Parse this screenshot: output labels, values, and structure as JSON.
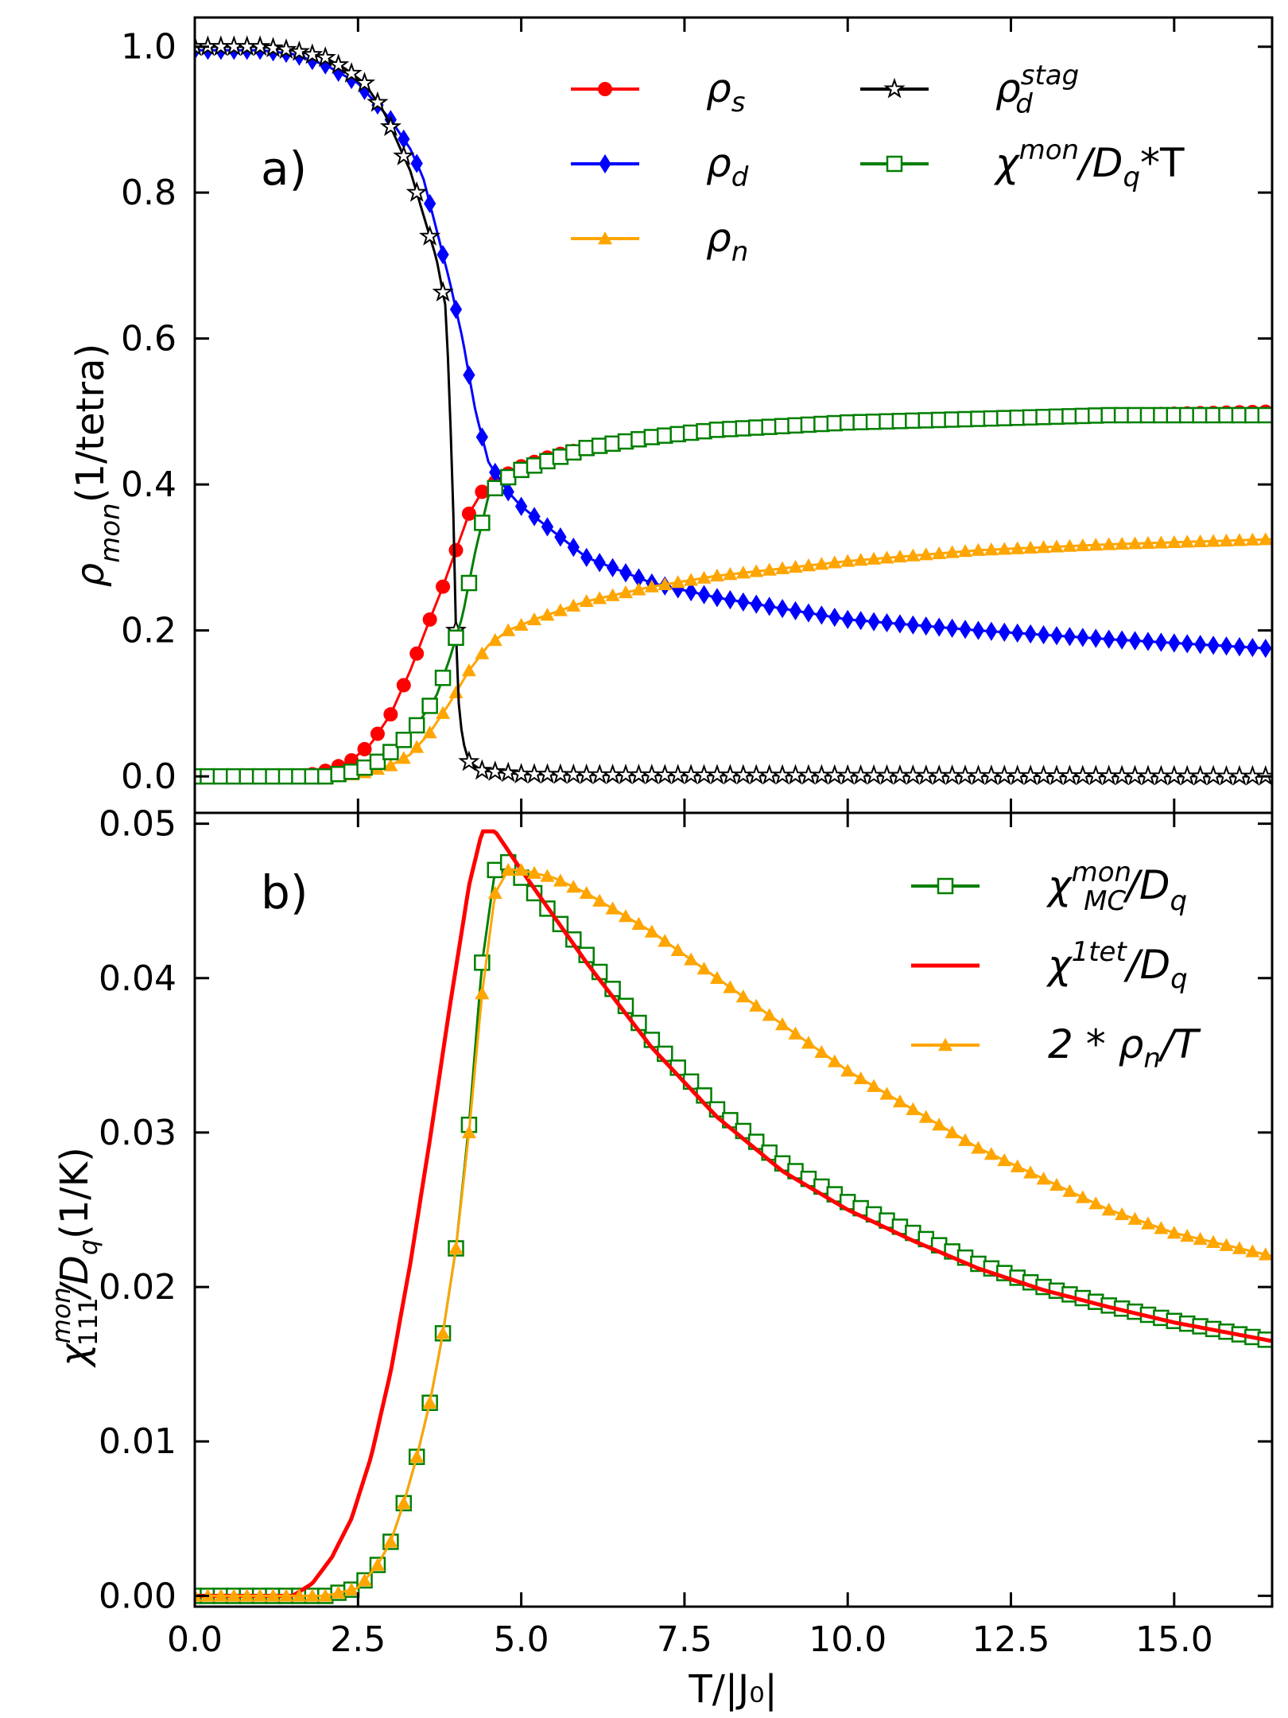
{
  "figure": {
    "xlabel": "T/|J₀|",
    "x_tick_labels": [
      "0.0",
      "2.5",
      "5.0",
      "7.5",
      "10.0",
      "12.5",
      "15.0"
    ],
    "colors": {
      "rho_s": "#ff0000",
      "rho_d": "#0000ff",
      "rho_n": "#ffa500",
      "rho_stag": "#000000",
      "chi_mc": "#007f00",
      "chi_1tet": "#ff0000",
      "two_rho_n": "#ffa500"
    }
  },
  "chart_data": [
    {
      "type": "line",
      "panel_label": "a)",
      "xlabel": "T/|J₀|",
      "ylabel": {
        "prefix": "ρ",
        "sub": "mon",
        "suffix": "(1/tetra)"
      },
      "xlim": [
        0.0,
        16.5
      ],
      "ylim": [
        -0.05,
        1.04
      ],
      "y_tick_labels": [
        "0.0",
        "0.2",
        "0.4",
        "0.6",
        "0.8",
        "1.0"
      ],
      "legend_position": "top-right",
      "series": [
        {
          "name": "ρs",
          "legend": {
            "base": "ρ",
            "sub": "s"
          },
          "color": "#ff0000",
          "marker": "circle",
          "points": [
            [
              0,
              0
            ],
            [
              1.5,
              0
            ],
            [
              1.8,
              0.003
            ],
            [
              2.1,
              0.01
            ],
            [
              2.4,
              0.022
            ],
            [
              2.7,
              0.045
            ],
            [
              3.0,
              0.085
            ],
            [
              3.3,
              0.145
            ],
            [
              3.6,
              0.215
            ],
            [
              3.8,
              0.26
            ],
            [
              4.0,
              0.31
            ],
            [
              4.2,
              0.36
            ],
            [
              4.4,
              0.39
            ],
            [
              4.7,
              0.41
            ],
            [
              5.0,
              0.425
            ],
            [
              5.5,
              0.44
            ],
            [
              6.0,
              0.45
            ],
            [
              7.0,
              0.465
            ],
            [
              8.0,
              0.475
            ],
            [
              10.0,
              0.485
            ],
            [
              12.0,
              0.49
            ],
            [
              14.0,
              0.495
            ],
            [
              16.5,
              0.5
            ]
          ]
        },
        {
          "name": "ρd",
          "legend": {
            "base": "ρ",
            "sub": "d"
          },
          "color": "#0000ff",
          "marker": "diamond",
          "points": [
            [
              0,
              0.995
            ],
            [
              1.0,
              0.995
            ],
            [
              1.5,
              0.99
            ],
            [
              2.0,
              0.975
            ],
            [
              2.5,
              0.95
            ],
            [
              3.0,
              0.9
            ],
            [
              3.3,
              0.86
            ],
            [
              3.5,
              0.82
            ],
            [
              3.7,
              0.75
            ],
            [
              3.9,
              0.68
            ],
            [
              4.1,
              0.6
            ],
            [
              4.3,
              0.5
            ],
            [
              4.5,
              0.43
            ],
            [
              4.8,
              0.39
            ],
            [
              5.0,
              0.37
            ],
            [
              5.5,
              0.335
            ],
            [
              6.0,
              0.3
            ],
            [
              7.0,
              0.265
            ],
            [
              8.0,
              0.245
            ],
            [
              9.0,
              0.23
            ],
            [
              10.0,
              0.215
            ],
            [
              12.0,
              0.2
            ],
            [
              14.0,
              0.188
            ],
            [
              16.5,
              0.175
            ]
          ]
        },
        {
          "name": "ρn",
          "legend": {
            "base": "ρ",
            "sub": "n"
          },
          "color": "#ffa500",
          "marker": "triangle",
          "points": [
            [
              0,
              0
            ],
            [
              2.0,
              0
            ],
            [
              2.5,
              0.003
            ],
            [
              3.0,
              0.015
            ],
            [
              3.3,
              0.03
            ],
            [
              3.6,
              0.06
            ],
            [
              3.9,
              0.1
            ],
            [
              4.2,
              0.145
            ],
            [
              4.5,
              0.18
            ],
            [
              4.8,
              0.2
            ],
            [
              5.2,
              0.215
            ],
            [
              6.0,
              0.24
            ],
            [
              7.0,
              0.26
            ],
            [
              8.0,
              0.275
            ],
            [
              10.0,
              0.295
            ],
            [
              12.0,
              0.31
            ],
            [
              14.0,
              0.318
            ],
            [
              16.5,
              0.325
            ]
          ]
        },
        {
          "name": "ρd^stag",
          "legend": {
            "base": "ρ",
            "sub": "d",
            "sup": "stag"
          },
          "color": "#000000",
          "marker": "star",
          "points": [
            [
              0,
              1.0
            ],
            [
              1.0,
              1.0
            ],
            [
              1.5,
              0.995
            ],
            [
              2.0,
              0.985
            ],
            [
              2.3,
              0.97
            ],
            [
              2.6,
              0.95
            ],
            [
              2.9,
              0.91
            ],
            [
              3.1,
              0.87
            ],
            [
              3.3,
              0.83
            ],
            [
              3.5,
              0.77
            ],
            [
              3.7,
              0.71
            ],
            [
              3.85,
              0.64
            ],
            [
              3.95,
              0.4
            ],
            [
              4.02,
              0.12
            ],
            [
              4.1,
              0.05
            ],
            [
              4.2,
              0.02
            ],
            [
              4.4,
              0.008
            ],
            [
              5.0,
              0.003
            ],
            [
              6.0,
              0.002
            ],
            [
              16.5,
              0.0
            ]
          ]
        },
        {
          "name": "χmon/Dq*T",
          "legend": {
            "base": "χ",
            "sup": "mon",
            "tail": "/D",
            "tail_sub": "q",
            "end": "*T"
          },
          "color": "#007f00",
          "marker": "square-open",
          "points": [
            [
              0,
              0
            ],
            [
              2.0,
              0
            ],
            [
              2.5,
              0.008
            ],
            [
              2.8,
              0.02
            ],
            [
              3.1,
              0.04
            ],
            [
              3.4,
              0.07
            ],
            [
              3.7,
              0.11
            ],
            [
              3.9,
              0.16
            ],
            [
              4.1,
              0.22
            ],
            [
              4.3,
              0.31
            ],
            [
              4.5,
              0.385
            ],
            [
              4.7,
              0.405
            ],
            [
              5.0,
              0.42
            ],
            [
              5.5,
              0.435
            ],
            [
              6.0,
              0.45
            ],
            [
              7.0,
              0.465
            ],
            [
              8.0,
              0.475
            ],
            [
              10.0,
              0.485
            ],
            [
              12.0,
              0.49
            ],
            [
              14.0,
              0.495
            ],
            [
              16.5,
              0.495
            ]
          ]
        }
      ]
    },
    {
      "type": "line",
      "panel_label": "b)",
      "xlabel": "T/|J₀|",
      "ylabel": {
        "prefix": "χ",
        "sup": "mon",
        "sub": "111",
        "suffix": "/D",
        "suffix_sub": "q",
        "end": "(1/K)"
      },
      "xlim": [
        0.0,
        16.5
      ],
      "ylim": [
        -0.0007,
        0.0507
      ],
      "y_tick_labels": [
        "0.00",
        "0.01",
        "0.02",
        "0.03",
        "0.04",
        "0.05"
      ],
      "legend_position": "top-right",
      "series": [
        {
          "name": "χMC^mon/Dq",
          "legend": {
            "base": "χ",
            "sup": "mon",
            "sub": "MC",
            "tail": "/D",
            "tail_sub": "q"
          },
          "color": "#007f00",
          "marker": "square-open",
          "points": [
            [
              0,
              0
            ],
            [
              2.0,
              0
            ],
            [
              2.5,
              0.0005
            ],
            [
              2.8,
              0.002
            ],
            [
              3.0,
              0.0035
            ],
            [
              3.2,
              0.006
            ],
            [
              3.4,
              0.009
            ],
            [
              3.6,
              0.0125
            ],
            [
              3.8,
              0.017
            ],
            [
              4.0,
              0.0225
            ],
            [
              4.2,
              0.0305
            ],
            [
              4.4,
              0.041
            ],
            [
              4.6,
              0.047
            ],
            [
              4.8,
              0.0475
            ],
            [
              5.0,
              0.0465
            ],
            [
              5.5,
              0.044
            ],
            [
              6.0,
              0.0415
            ],
            [
              7.0,
              0.036
            ],
            [
              8.0,
              0.0315
            ],
            [
              9.0,
              0.028
            ],
            [
              10.0,
              0.0255
            ],
            [
              11.0,
              0.0235
            ],
            [
              12.0,
              0.0215
            ],
            [
              13.0,
              0.02
            ],
            [
              14.0,
              0.0188
            ],
            [
              15.0,
              0.0178
            ],
            [
              16.5,
              0.0165
            ]
          ]
        },
        {
          "name": "χ1tet/Dq",
          "legend": {
            "base": "χ",
            "sup": "1tet",
            "tail": "/D",
            "tail_sub": "q"
          },
          "color": "#ff0000",
          "marker": "none",
          "points": [
            [
              0,
              0
            ],
            [
              1.5,
              0
            ],
            [
              1.8,
              0.0008
            ],
            [
              2.1,
              0.0025
            ],
            [
              2.4,
              0.005
            ],
            [
              2.7,
              0.009
            ],
            [
              3.0,
              0.0145
            ],
            [
              3.3,
              0.0215
            ],
            [
              3.6,
              0.0295
            ],
            [
              3.9,
              0.038
            ],
            [
              4.2,
              0.046
            ],
            [
              4.4,
              0.0495
            ],
            [
              4.6,
              0.0495
            ],
            [
              5.0,
              0.047
            ],
            [
              5.5,
              0.044
            ],
            [
              6.0,
              0.041
            ],
            [
              7.0,
              0.0355
            ],
            [
              8.0,
              0.031
            ],
            [
              9.0,
              0.0275
            ],
            [
              10.0,
              0.025
            ],
            [
              11.0,
              0.023
            ],
            [
              12.0,
              0.0212
            ],
            [
              13.0,
              0.0198
            ],
            [
              14.0,
              0.0187
            ],
            [
              15.0,
              0.0177
            ],
            [
              16.5,
              0.0165
            ]
          ]
        },
        {
          "name": "2*ρn/T",
          "legend": {
            "base": "2 * ρ",
            "sub": "n",
            "tail": "/T"
          },
          "color": "#ffa500",
          "marker": "triangle",
          "points": [
            [
              0,
              0
            ],
            [
              2.0,
              0
            ],
            [
              2.5,
              0.0005
            ],
            [
              2.8,
              0.002
            ],
            [
              3.0,
              0.0035
            ],
            [
              3.2,
              0.006
            ],
            [
              3.4,
              0.009
            ],
            [
              3.6,
              0.0125
            ],
            [
              3.8,
              0.017
            ],
            [
              4.0,
              0.0225
            ],
            [
              4.2,
              0.03
            ],
            [
              4.4,
              0.039
            ],
            [
              4.6,
              0.0455
            ],
            [
              4.8,
              0.047
            ],
            [
              5.0,
              0.047
            ],
            [
              5.5,
              0.0465
            ],
            [
              6.0,
              0.0455
            ],
            [
              7.0,
              0.043
            ],
            [
              8.0,
              0.04
            ],
            [
              9.0,
              0.037
            ],
            [
              10.0,
              0.034
            ],
            [
              11.0,
              0.0315
            ],
            [
              12.0,
              0.029
            ],
            [
              13.0,
              0.027
            ],
            [
              14.0,
              0.025
            ],
            [
              15.0,
              0.0235
            ],
            [
              16.5,
              0.022
            ]
          ]
        }
      ]
    }
  ]
}
